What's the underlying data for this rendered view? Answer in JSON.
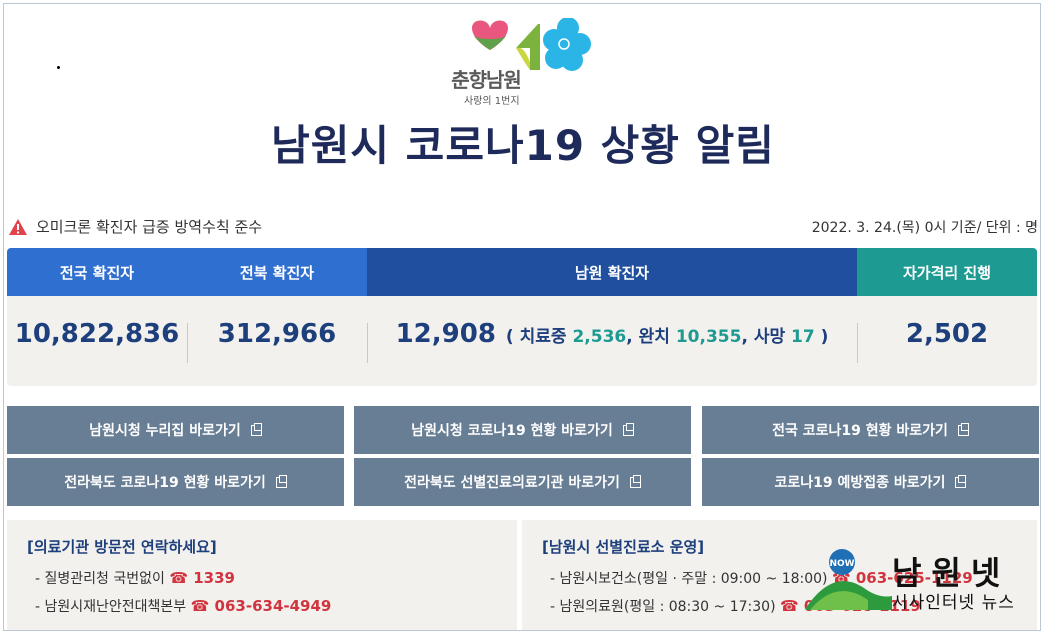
{
  "logo": {
    "name": "춘향남원",
    "tagline": "사랑의 1번지"
  },
  "title": "남원시 코로나19 상황 알림",
  "notice": {
    "text": "오미크론 확진자 급증 방역수칙 준수",
    "icon": "warning-triangle-icon"
  },
  "date_line": "2022. 3. 24.(목) 0시 기준/ 단위 : 명",
  "stats": {
    "headers": [
      "전국 확진자",
      "전북 확진자",
      "남원 확진자",
      "자가격리 진행"
    ],
    "national": "10,822,836",
    "jeonbuk": "312,966",
    "namwon": {
      "total": "12,908",
      "open": "( 치료중",
      "treating": "2,536",
      "cured_label": ", 완치",
      "cured": "10,355",
      "death_label": ", 사망",
      "deaths": "17",
      "close": ")"
    },
    "self_isolation": "2,502"
  },
  "links": [
    "남원시청 누리집 바로가기",
    "남원시청 코로나19 현황 바로가기",
    "전국 코로나19 현황 바로가기",
    "전라북도 코로나19 현황 바로가기",
    "전라북도 선별진료의료기관 바로가기",
    "코로나19 예방접종 바로가기"
  ],
  "info_left": {
    "title": "[의료기관 방문전 연락하세요]",
    "lines": [
      {
        "label": "- 질병관리청 국번없이",
        "phone": "☎ 1339"
      },
      {
        "label": "- 남원시재난안전대책본부",
        "phone": "☎ 063-634-4949"
      }
    ]
  },
  "info_right": {
    "title": "[남원시 선별진료소 운영]",
    "lines": [
      {
        "label": "- 남원시보건소(평일 · 주말 : 09:00 ~ 18:00)",
        "phone": "☎ 063-625-1129"
      },
      {
        "label": "- 남원의료원(평일 : 08:30 ~ 17:30)",
        "phone": "☎ 063-620-1119"
      }
    ]
  },
  "watermark": {
    "title": "남원넷",
    "subtitle": "시사인터넷 뉴스",
    "badge": "NOW"
  },
  "colors": {
    "navy": "#1d2a5a",
    "blue": "#2f6fd0",
    "darkblue": "#1f4f9e",
    "teal": "#1d9a91",
    "button": "#687e95",
    "red": "#d0343f"
  }
}
